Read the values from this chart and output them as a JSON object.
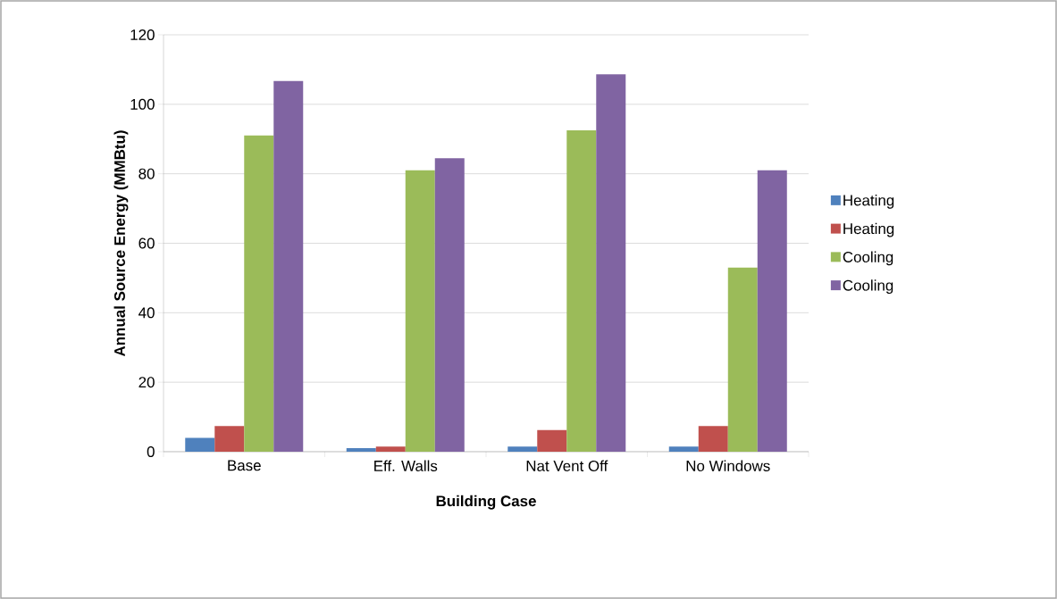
{
  "chart_data": {
    "type": "bar",
    "xlabel": "Building Case",
    "ylabel": "Annual Source Energy (MMBtu)",
    "categories": [
      "Base",
      "Eff. Walls",
      "Nat Vent Off",
      "No Windows"
    ],
    "series": [
      {
        "name": "Heating",
        "color": "#4f81bd",
        "values": [
          4,
          1,
          1.5,
          1.5
        ]
      },
      {
        "name": "Heating",
        "color": "#c0504d",
        "values": [
          7.4,
          1.5,
          6.2,
          7.4
        ]
      },
      {
        "name": "Cooling",
        "color": "#9bbb59",
        "values": [
          91,
          81,
          92.5,
          53
        ]
      },
      {
        "name": "Cooling",
        "color": "#8064a2",
        "values": [
          106.7,
          84.5,
          108.6,
          81
        ]
      }
    ],
    "ylim": [
      0,
      120
    ],
    "yticks": [
      0,
      20,
      40,
      60,
      80,
      100,
      120
    ],
    "grid": "y",
    "legend": "right"
  }
}
